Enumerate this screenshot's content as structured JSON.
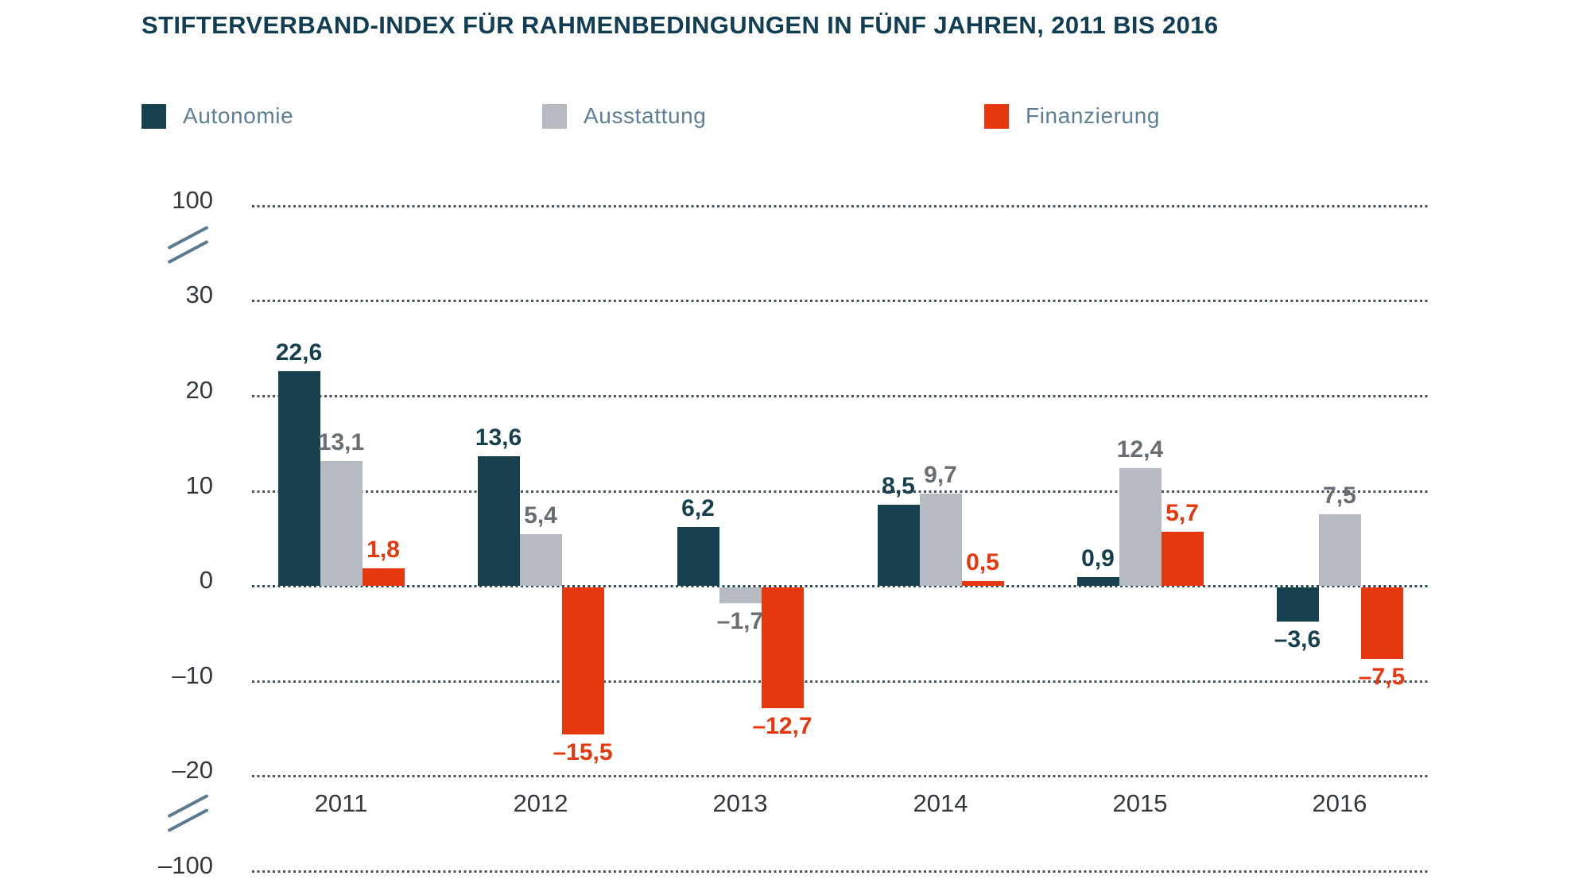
{
  "title": "STIFTERVERBAND-INDEX FÜR RAHMENBEDINGUNGEN IN FÜNF JAHREN, 2011 BIS 2016",
  "legend": {
    "items": [
      {
        "label": "Autonomie",
        "key": "autonomie"
      },
      {
        "label": "Ausstattung",
        "key": "ausstattung"
      },
      {
        "label": "Finanzierung",
        "key": "finanzierung"
      }
    ]
  },
  "colors": {
    "autonomie": "#17404f",
    "ausstattung": "#b6bbc1",
    "finanzierung": "#e6380f",
    "autonomie_label": "#17404f",
    "ausstattung_label": "#686e73",
    "finanzierung_label": "#e6380f",
    "title_text": "#123e54",
    "axis_text": "#33383d",
    "legend_text": "#5d7f97",
    "grid": "#4a545c",
    "zero_grid": "#2b4a5c",
    "break_mark": "#5b7b91"
  },
  "chart_data": {
    "type": "bar",
    "title": "STIFTERVERBAND-INDEX FÜR RAHMENBEDINGUNGEN IN FÜNF JAHREN, 2011 BIS 2016",
    "categories": [
      "2011",
      "2012",
      "2013",
      "2014",
      "2015",
      "2016"
    ],
    "series": [
      {
        "name": "Autonomie",
        "key": "autonomie",
        "values": [
          22.6,
          13.6,
          6.2,
          8.5,
          0.9,
          -3.6
        ],
        "value_labels": [
          "22,6",
          "13,6",
          "6,2",
          "8,5",
          "0,9",
          "–3,6"
        ]
      },
      {
        "name": "Ausstattung",
        "key": "ausstattung",
        "values": [
          13.1,
          5.4,
          -1.7,
          9.7,
          12.4,
          7.5
        ],
        "value_labels": [
          "13,1",
          "5,4",
          "–1,7",
          "9,7",
          "12,4",
          "7,5"
        ]
      },
      {
        "name": "Finanzierung",
        "key": "finanzierung",
        "values": [
          1.8,
          -15.5,
          -12.7,
          0.5,
          5.7,
          -7.5
        ],
        "value_labels": [
          "1,8",
          "–15,5",
          "–12,7",
          "0,5",
          "5,7",
          "–7,5"
        ]
      }
    ],
    "y_axis": {
      "tick_values": [
        100,
        30,
        20,
        10,
        0,
        -10,
        -20,
        -100
      ],
      "tick_labels": [
        "100",
        "30",
        "20",
        "10",
        "0",
        "–10",
        "–20",
        "–100"
      ],
      "axis_breaks": [
        [
          30,
          100
        ],
        [
          -100,
          -20
        ]
      ],
      "linear_range": [
        -20,
        30
      ]
    },
    "grid": "dotted-horizontal",
    "legend_position": "top",
    "xlabel": "",
    "ylabel": ""
  }
}
